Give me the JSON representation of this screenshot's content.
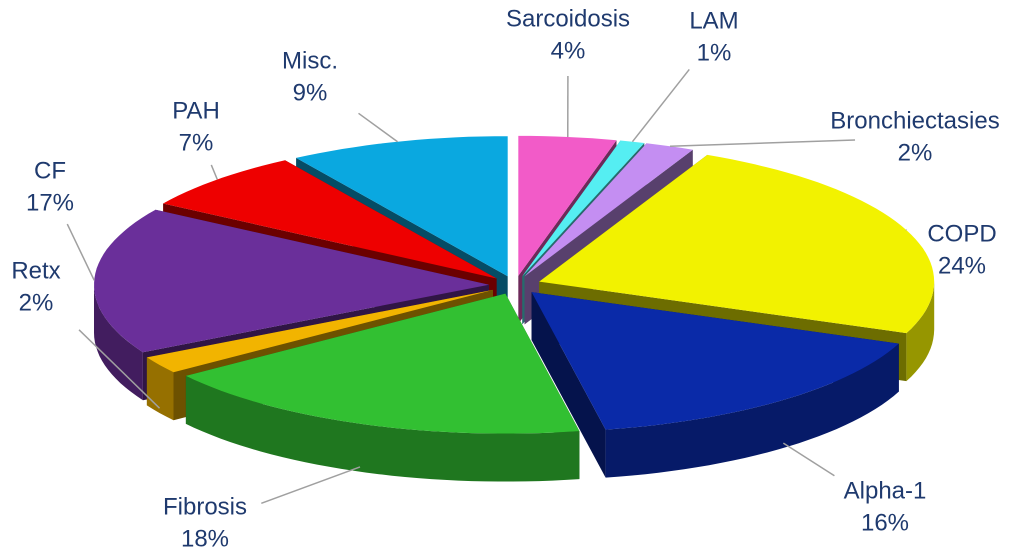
{
  "chart_data": {
    "type": "pie",
    "categories": [
      "Sarcoidosis",
      "LAM",
      "Bronchiectasies",
      "COPD",
      "Alpha-1",
      "Fibrosis",
      "Retx",
      "CF",
      "PAH",
      "Misc."
    ],
    "values": [
      4,
      1,
      2,
      24,
      16,
      18,
      2,
      17,
      7,
      9
    ],
    "value_labels": [
      "4%",
      "1%",
      "2%",
      "24%",
      "16%",
      "18%",
      "2%",
      "17%",
      "7%",
      "9%"
    ],
    "colors": [
      "#f25bc8",
      "#55eef2",
      "#c48ef2",
      "#f2f200",
      "#0a2aa8",
      "#32c032",
      "#f2b400",
      "#6a2f9a",
      "#ee0000",
      "#0aa8e0"
    ]
  }
}
